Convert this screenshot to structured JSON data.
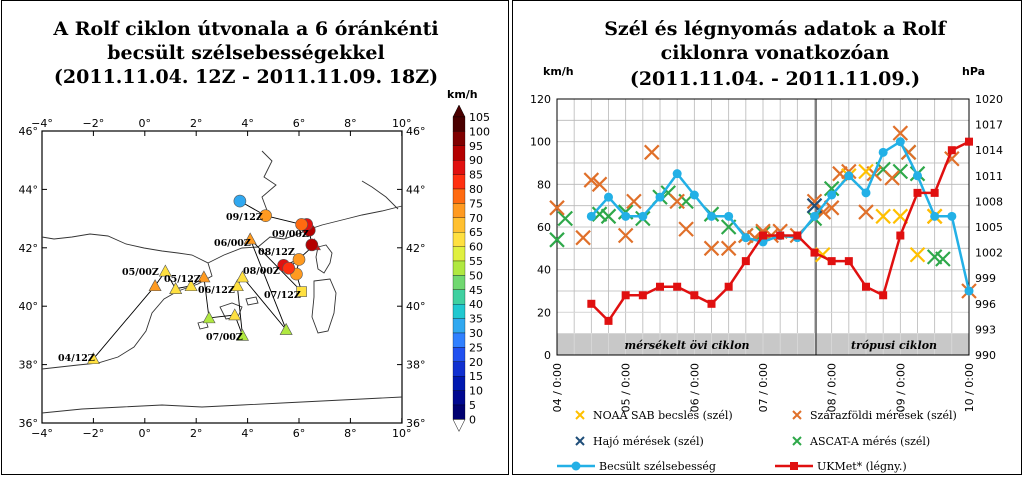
{
  "left": {
    "title_lines": [
      "A Rolf ciklon útvonala a 6 óránkénti",
      "becsült szélsebességekkel",
      "(2011.11.04. 12Z - 2011.11.09. 18Z)"
    ],
    "lon_ticks": [
      "−4°",
      "−2°",
      "0°",
      "2°",
      "4°",
      "6°",
      "8°",
      "10°"
    ],
    "lat_ticks": [
      "46°",
      "44°",
      "42°",
      "40°",
      "38°",
      "36°"
    ],
    "colorbar": {
      "unit": "km/h",
      "labels": [
        "105",
        "100",
        "95",
        "90",
        "85",
        "80",
        "75",
        "70",
        "65",
        "60",
        "55",
        "50",
        "45",
        "40",
        "35",
        "30",
        "25",
        "20",
        "15",
        "10",
        "5",
        "0"
      ],
      "colors": [
        "#4a0000",
        "#800000",
        "#b40000",
        "#e01010",
        "#ff3010",
        "#ff6a10",
        "#ff9a20",
        "#ffc030",
        "#ffe040",
        "#e0f040",
        "#b0e840",
        "#70d870",
        "#40d0a0",
        "#20c8d0",
        "#30a8f0",
        "#3080ff",
        "#2050f0",
        "#1030d0",
        "#0018b0",
        "#000890",
        "#000070"
      ]
    },
    "track_labels": [
      "09/12Z",
      "09/00Z",
      "06/00Z",
      "08/12Z",
      "08/00Z",
      "07/12Z",
      "05/00Z",
      "05/12Z",
      "06/12Z",
      "07/00Z",
      "04/12Z"
    ],
    "track_points": [
      {
        "lon": -2.0,
        "lat": 38.2,
        "shape": "triangle",
        "color": "#ffe040"
      },
      {
        "lon": 0.4,
        "lat": 40.7,
        "shape": "triangle",
        "color": "#ff9a20"
      },
      {
        "lon": 0.8,
        "lat": 41.2,
        "shape": "triangle",
        "color": "#ffe040"
      },
      {
        "lon": 1.2,
        "lat": 40.6,
        "shape": "triangle",
        "color": "#ffe040"
      },
      {
        "lon": 1.8,
        "lat": 40.7,
        "shape": "triangle",
        "color": "#ffe040"
      },
      {
        "lon": 2.3,
        "lat": 41.0,
        "shape": "triangle",
        "color": "#ff9a20"
      },
      {
        "lon": 2.5,
        "lat": 39.6,
        "shape": "triangle",
        "color": "#b0e840"
      },
      {
        "lon": 3.5,
        "lat": 39.7,
        "shape": "triangle",
        "color": "#ffe040"
      },
      {
        "lon": 3.8,
        "lat": 39.0,
        "shape": "triangle",
        "color": "#b0e840"
      },
      {
        "lon": 3.6,
        "lat": 40.7,
        "shape": "triangle",
        "color": "#ffe040"
      },
      {
        "lon": 3.8,
        "lat": 41.0,
        "shape": "triangle",
        "color": "#ffe040"
      },
      {
        "lon": 5.5,
        "lat": 39.2,
        "shape": "triangle",
        "color": "#b0e840"
      },
      {
        "lon": 4.1,
        "lat": 42.3,
        "shape": "triangle",
        "color": "#ff9a20"
      },
      {
        "lon": 6.1,
        "lat": 40.5,
        "shape": "square",
        "color": "#ffe040"
      },
      {
        "lon": 5.9,
        "lat": 41.1,
        "shape": "circle",
        "color": "#ff9a20"
      },
      {
        "lon": 6.0,
        "lat": 41.6,
        "shape": "circle",
        "color": "#ff9a20"
      },
      {
        "lon": 5.4,
        "lat": 41.4,
        "shape": "circle",
        "color": "#e01010"
      },
      {
        "lon": 5.6,
        "lat": 41.3,
        "shape": "circle",
        "color": "#ff3010"
      },
      {
        "lon": 6.6,
        "lat": 42.1,
        "shape": "triangle",
        "color": "#e01010"
      },
      {
        "lon": 6.5,
        "lat": 42.1,
        "shape": "circle",
        "color": "#b40000"
      },
      {
        "lon": 6.4,
        "lat": 42.6,
        "shape": "circle",
        "color": "#b40000"
      },
      {
        "lon": 6.3,
        "lat": 42.8,
        "shape": "circle",
        "color": "#e01010"
      },
      {
        "lon": 6.1,
        "lat": 42.8,
        "shape": "circle",
        "color": "#ff6a10"
      },
      {
        "lon": 4.7,
        "lat": 43.1,
        "shape": "circle",
        "color": "#ff9a20"
      },
      {
        "lon": 3.7,
        "lat": 43.6,
        "shape": "circle",
        "color": "#30a8f0"
      }
    ]
  },
  "right": {
    "title_lines": [
      "Szél és légnyomás adatok a Rolf",
      "ciklonra vonatkozóan",
      "(2011.11.04. - 2011.11.09.)"
    ],
    "left_unit": "km/h",
    "right_unit": "hPa",
    "left_ticks": [
      "120",
      "100",
      "80",
      "60",
      "40",
      "20",
      "0"
    ],
    "right_ticks": [
      "1020",
      "1017",
      "1014",
      "1011",
      "1008",
      "1005",
      "1002",
      "999",
      "996",
      "993",
      "990"
    ],
    "x_ticks": [
      "04 / 0:00",
      "05 / 0:00",
      "06 / 0:00",
      "07 / 0:00",
      "08 / 0:00",
      "09 / 0:00",
      "10 / 0:00"
    ],
    "band_left": "mérsékelt övi ciklon",
    "band_right": "trópusi ciklon",
    "legend": [
      "NOAA SAB becslés (szél)",
      "Szárazföldi mérések (szél)",
      "Hajó mérések (szél)",
      "ASCAT-A mérés (szél)",
      "Becsült szélsebesség",
      "UKMet* (légny.)"
    ]
  },
  "chart_data": {
    "type": "line",
    "title": "Szél és légnyomás adatok a Rolf ciklonra vonatkozóan (2011.11.04. - 2011.11.09.)",
    "x_unit": "day (November 2011)",
    "xlim": [
      4,
      10
    ],
    "ylabel_left": "km/h",
    "ylim_left": [
      0,
      120
    ],
    "ylabel_right": "hPa",
    "ylim_right": [
      990,
      1020
    ],
    "grid": true,
    "series": [
      {
        "name": "NOAA SAB becslés (szél)",
        "axis": "left",
        "marker": "x",
        "color": "#ffc000",
        "x": [
          7.87,
          8.25,
          8.5,
          8.75,
          9.0,
          9.25,
          9.5
        ],
        "y": [
          47,
          84,
          86,
          65,
          65,
          47,
          65
        ]
      },
      {
        "name": "Szárazföldi mérések (szél)",
        "axis": "left",
        "marker": "x",
        "color": "#e0702a",
        "x": [
          4.0,
          4.38,
          4.5,
          4.62,
          5.0,
          5.12,
          5.38,
          5.75,
          5.88,
          6.25,
          6.5,
          6.75,
          6.88,
          7.0,
          7.12,
          7.25,
          7.5,
          7.75,
          7.88,
          8.0,
          8.12,
          8.25,
          8.5,
          8.62,
          8.88,
          9.0,
          9.12,
          9.5,
          9.75,
          10.0
        ],
        "y": [
          69,
          55,
          82,
          80,
          56,
          72,
          95,
          72,
          59,
          50,
          50,
          56,
          55,
          58,
          56,
          58,
          56,
          72,
          67,
          69,
          85,
          86,
          67,
          85,
          83,
          104,
          95,
          65,
          92,
          30
        ]
      },
      {
        "name": "Hajó mérések (szél)",
        "axis": "left",
        "marker": "x",
        "color": "#1f4e79",
        "x": [
          7.75
        ],
        "y": [
          70
        ]
      },
      {
        "name": "ASCAT-A mérés (szél)",
        "axis": "left",
        "marker": "x",
        "color": "#2ea84a",
        "x": [
          4.0,
          4.12,
          4.62,
          4.75,
          5.0,
          5.25,
          5.5,
          5.62,
          5.88,
          6.25,
          6.5,
          6.75,
          7.0,
          7.75,
          8.0,
          8.75,
          9.0,
          9.12,
          9.25,
          9.5,
          9.62
        ],
        "y": [
          54,
          64,
          66,
          65,
          67,
          64,
          74,
          76,
          72,
          66,
          60,
          56,
          57,
          64,
          78,
          87,
          86,
          95,
          85,
          46,
          45
        ]
      },
      {
        "name": "Becsült szélsebesség",
        "axis": "left",
        "marker": "circle",
        "color": "#23b0e6",
        "x": [
          4.5,
          4.75,
          5.0,
          5.25,
          5.5,
          5.75,
          6.0,
          6.25,
          6.5,
          6.75,
          7.0,
          7.25,
          7.5,
          7.75,
          8.0,
          8.25,
          8.5,
          8.75,
          9.0,
          9.25,
          9.5,
          9.75,
          10.0
        ],
        "y": [
          65,
          74,
          65,
          65,
          74,
          85,
          75,
          65,
          65,
          55,
          53,
          56,
          55,
          65,
          75,
          84,
          76,
          95,
          100,
          84,
          65,
          65,
          30
        ]
      },
      {
        "name": "UKMet* (légny.)",
        "axis": "right",
        "marker": "square",
        "color": "#e01010",
        "x": [
          4.5,
          4.75,
          5.0,
          5.25,
          5.5,
          5.75,
          6.0,
          6.25,
          6.5,
          6.75,
          7.0,
          7.25,
          7.5,
          7.75,
          8.0,
          8.25,
          8.5,
          8.75,
          9.0,
          9.25,
          9.5,
          9.75,
          10.0
        ],
        "y": [
          996,
          994,
          997,
          997,
          998,
          998,
          997,
          996,
          998,
          1001,
          1004,
          1004,
          1004,
          1002,
          1001,
          1001,
          998,
          997,
          1004,
          1009,
          1009,
          1014,
          1015
        ]
      }
    ]
  }
}
